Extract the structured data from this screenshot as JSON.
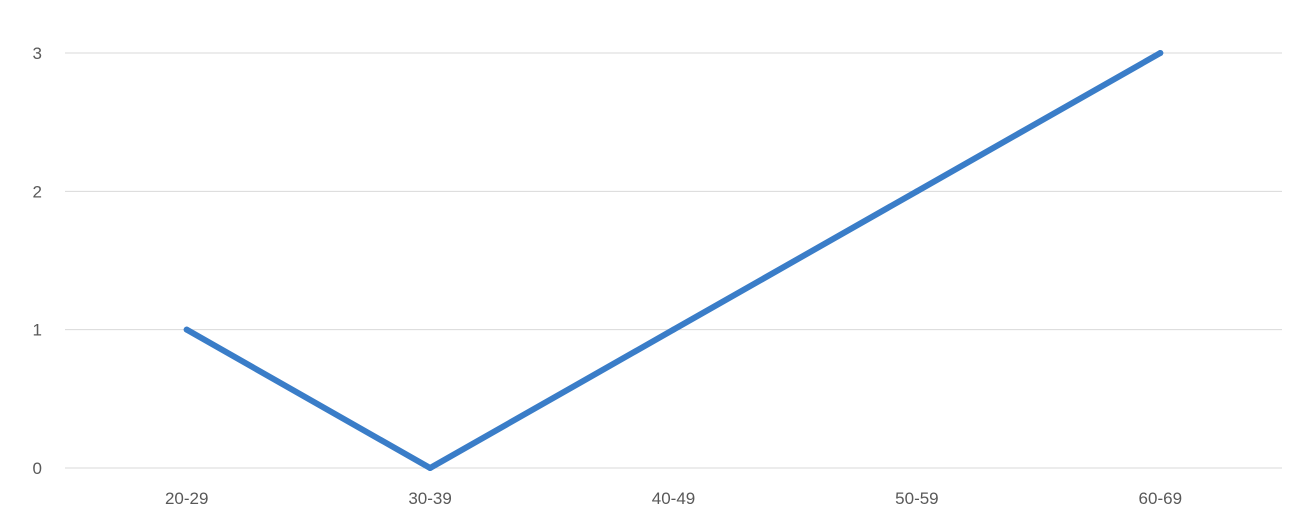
{
  "chart_data": {
    "type": "line",
    "categories": [
      "20-29",
      "30-39",
      "40-49",
      "50-59",
      "60-69"
    ],
    "series": [
      {
        "values": [
          1,
          0,
          1,
          2,
          3
        ],
        "color": "#3a7dc8"
      }
    ],
    "y_ticks": [
      "0",
      "1",
      "2",
      "3"
    ],
    "ylim": [
      0,
      3
    ],
    "grid": true,
    "legend": "none",
    "title": "",
    "xlabel": "",
    "ylabel": ""
  }
}
